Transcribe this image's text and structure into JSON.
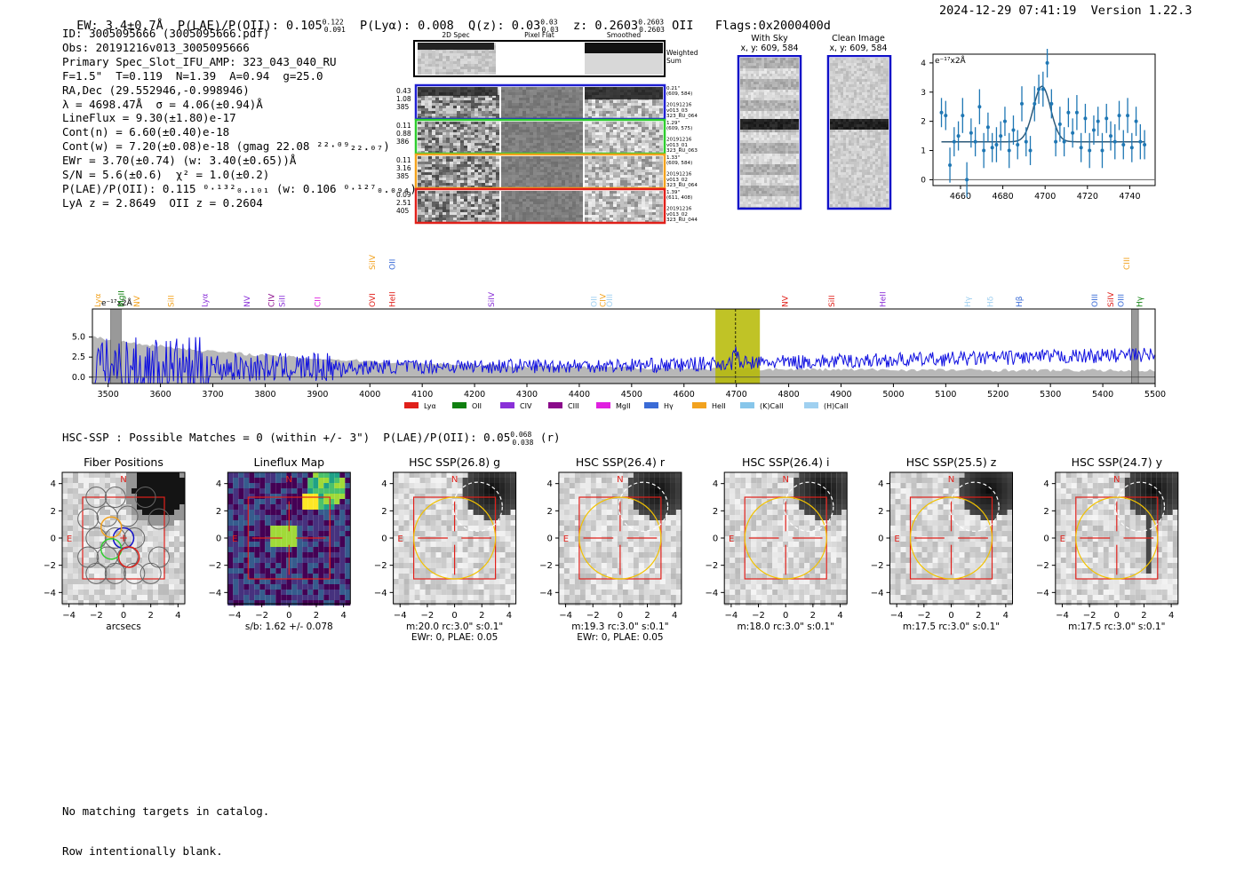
{
  "header": {
    "line": "EW: 3.4±0.7Å  P(LAE)/P(OII): 0.105 ₀.₀₉₁  P(Lyα): 0.008  Q(z): 0.03 ₀.₀₃  z: 0.2603 ₀.₂₆₀₃ OII   Flags:0x2000400d",
    "ew_sup": "0.122",
    "qz_sup": "0.03",
    "z_sup": "0.2603",
    "timestamp": "2024-12-29 07:41:19  Version 1.22.3"
  },
  "info": [
    "ID: 3005095666 (3005095666.pdf)",
    "Obs: 20191216v013_3005095666",
    "Primary Spec_Slot_IFU_AMP: 323_043_040_RU",
    "F=1.5\"  T=0.119  N=1.39  A=0.94  g=25.0",
    "RA,Dec (29.552946,-0.998946)",
    "λ = 4698.47Å  σ = 4.06(±0.94)Å",
    "LineFlux = 9.30(±1.80)e-17",
    "Cont(n) = 6.60(±0.40)e-18",
    "Cont(w) = 7.20(±0.08)e-18 (gmag 22.08 ²²·⁰⁹₂₂.₀₇)",
    "EWr = 3.70(±0.74) (w: 3.40(±0.65))Å",
    "S/N = 5.6(±0.6)  χ² = 1.0(±0.2)",
    "P(LAE)/P(OII): 0.115 ⁰·¹³²₀.₁₀₁ (w: 0.106 ⁰·¹²⁷₀.₀₉₄)",
    "LyA z = 2.8649  OII z = 0.2604"
  ],
  "cutouts": {
    "col_titles": [
      "2D Spec",
      "Pixel Flat",
      "Smoothed"
    ],
    "weighted_label": "Weighted\nSum",
    "rows": [
      {
        "left": "0.43\n1.08\n385",
        "right": "0.21\"\n(609, 584)\n\n20191216\nv013_03\n323_RU_064",
        "color": "#1f1fd0"
      },
      {
        "left": "0.11\n0.88\n386",
        "right": "1.29\"\n(609, 575)\n\n20191216\nv013_01\n323_RU_063",
        "color": "#2ecc2e"
      },
      {
        "left": "0.11\n3.16\n385",
        "right": "1.33\"\n(609, 584)\n\n20191216\nv013_02\n323_RU_064",
        "color": "#f2a21e"
      },
      {
        "left": "0.09\n2.51\n405",
        "right": "1.39\"\n(611, 408)\n\n20191216\nv013_02\n323_RU_044",
        "color": "#e0201a"
      }
    ]
  },
  "sky": {
    "with_sky_title": "With Sky\nx, y: 609, 584",
    "clean_title": "Clean Image\nx, y: 609, 584"
  },
  "zoom_chart": {
    "ylabel": "e⁻¹⁷x2Å",
    "xticks": [
      "4660",
      "4680",
      "4700",
      "4720",
      "4740"
    ],
    "yticks": [
      "0",
      "1",
      "2",
      "3",
      "4"
    ]
  },
  "chart_data": [
    {
      "type": "scatter",
      "xlim": [
        4647,
        4752
      ],
      "ylim": [
        -0.2,
        4.3
      ],
      "x": [
        4651,
        4653,
        4655,
        4657,
        4659,
        4661,
        4663,
        4665,
        4667,
        4669,
        4671,
        4673,
        4675,
        4677,
        4679,
        4681,
        4683,
        4685,
        4687,
        4689,
        4691,
        4693,
        4695,
        4697,
        4699,
        4701,
        4703,
        4705,
        4707,
        4709,
        4711,
        4713,
        4715,
        4717,
        4719,
        4721,
        4723,
        4725,
        4727,
        4729,
        4731,
        4733,
        4735,
        4737,
        4739,
        4741,
        4743,
        4745,
        4747
      ],
      "values": [
        2.3,
        2.2,
        0.5,
        1.3,
        1.5,
        2.2,
        0.0,
        1.6,
        1.3,
        2.5,
        1.0,
        1.8,
        1.1,
        1.2,
        1.5,
        2.0,
        1.0,
        1.7,
        1.2,
        2.6,
        1.3,
        1.0,
        2.6,
        3.1,
        3.1,
        4.0,
        2.6,
        1.3,
        1.9,
        1.3,
        2.3,
        1.6,
        2.3,
        1.1,
        2.1,
        1.0,
        1.7,
        2.0,
        1.0,
        2.1,
        1.5,
        1.3,
        2.2,
        1.2,
        2.2,
        1.1,
        2.0,
        1.3,
        1.2
      ],
      "errors": [
        0.5,
        0.5,
        0.6,
        0.5,
        0.5,
        0.6,
        0.6,
        0.5,
        0.5,
        0.6,
        0.6,
        0.5,
        0.5,
        0.6,
        0.5,
        0.5,
        0.6,
        0.5,
        0.5,
        0.6,
        0.5,
        0.5,
        0.6,
        0.5,
        0.6,
        0.5,
        0.5,
        0.5,
        0.6,
        0.5,
        0.5,
        0.5,
        0.6,
        0.5,
        0.5,
        0.6,
        0.5,
        0.5,
        0.6,
        0.5,
        0.5,
        0.6,
        0.5,
        0.5,
        0.6,
        0.5,
        0.5,
        0.6,
        0.5
      ],
      "fit": {
        "continuum": 1.3,
        "peak": 3.2,
        "center": 4698.5,
        "sigma": 4.06
      }
    },
    {
      "type": "line",
      "xlim": [
        3470,
        5500
      ],
      "ylim": [
        -0.8,
        8.5
      ],
      "xticks": [
        "3500",
        "3600",
        "3700",
        "3800",
        "3900",
        "4000",
        "4100",
        "4200",
        "4300",
        "4400",
        "4500",
        "4600",
        "4700",
        "4800",
        "4900",
        "5000",
        "5100",
        "5200",
        "5300",
        "5400",
        "5500"
      ],
      "yticks": [
        "0.0",
        "2.5",
        "5.0"
      ],
      "ylabel": "e⁻¹⁷x2Å",
      "highlight": [
        4660,
        4745
      ],
      "line_marker": 4698.5
    }
  ],
  "lines_top": [
    {
      "name": "SiIV",
      "x": 4005,
      "color": "#f2a21e",
      "row": 0
    },
    {
      "name": "OII",
      "x": 4043,
      "color": "#3a6bd6",
      "row": 0
    },
    {
      "name": "CIII",
      "x": 5446,
      "color": "#f2a21e",
      "row": 0
    }
  ],
  "lines": [
    {
      "name": "Lyα",
      "x": 3480,
      "color": "#f2a21e"
    },
    {
      "name": "MgII",
      "x": 3525,
      "color": "#108010"
    },
    {
      "name": "NV",
      "x": 3555,
      "color": "#f2a21e"
    },
    {
      "name": "SiII",
      "x": 3620,
      "color": "#f2a21e"
    },
    {
      "name": "Lyα",
      "x": 3685,
      "color": "#8a30d8"
    },
    {
      "name": "NV",
      "x": 3765,
      "color": "#8a30d8"
    },
    {
      "name": "CIV",
      "x": 3812,
      "color": "#8a0a8a"
    },
    {
      "name": "SiII",
      "x": 3832,
      "color": "#8a30d8"
    },
    {
      "name": "CII",
      "x": 3900,
      "color": "#e020e0"
    },
    {
      "name": "OVI",
      "x": 4005,
      "color": "#e0201a"
    },
    {
      "name": "HeII",
      "x": 4043,
      "color": "#e0201a"
    },
    {
      "name": "SiIV",
      "x": 4232,
      "color": "#8a30d8"
    },
    {
      "name": "OII",
      "x": 4428,
      "color": "#9fd0f0"
    },
    {
      "name": "CIV",
      "x": 4445,
      "color": "#f2a21e"
    },
    {
      "name": "OIII",
      "x": 4458,
      "color": "#9fd0f0"
    },
    {
      "name": "NV",
      "x": 4793,
      "color": "#e0201a"
    },
    {
      "name": "SiII",
      "x": 4882,
      "color": "#e0201a"
    },
    {
      "name": "HeII",
      "x": 4980,
      "color": "#8a30d8"
    },
    {
      "name": "Hγ",
      "x": 5142,
      "color": "#9fd0f0"
    },
    {
      "name": "Hδ",
      "x": 5185,
      "color": "#9fd0f0"
    },
    {
      "name": "Hβ",
      "x": 5240,
      "color": "#3a6bd6"
    },
    {
      "name": "OIII",
      "x": 5385,
      "color": "#3a6bd6"
    },
    {
      "name": "SiIV",
      "x": 5415,
      "color": "#e0201a"
    },
    {
      "name": "OIII",
      "x": 5435,
      "color": "#3a6bd6"
    },
    {
      "name": "Hγ",
      "x": 5470,
      "color": "#108010"
    }
  ],
  "legend": [
    {
      "name": "Lyα",
      "color": "#e0201a"
    },
    {
      "name": "OII",
      "color": "#108010"
    },
    {
      "name": "CIV",
      "color": "#8a30d8"
    },
    {
      "name": "CIII",
      "color": "#8a0a8a"
    },
    {
      "name": "MgII",
      "color": "#e020e0"
    },
    {
      "name": "Hγ",
      "color": "#3a6bd6"
    },
    {
      "name": "HeII",
      "color": "#f2a21e"
    },
    {
      "name": "(K)CaII",
      "color": "#87c6ea"
    },
    {
      "name": "(H)CaII",
      "color": "#9fd0f0"
    }
  ],
  "hsc": {
    "summary": "HSC-SSP : Possible Matches = 0 (within +/- 3\")  P(LAE)/P(OII): 0.05 ⁰·⁰⁶⁸₀.₀₃₈ (r)",
    "panels": [
      {
        "title": "Fiber Positions",
        "caption": "arcsecs"
      },
      {
        "title": "Lineflux Map",
        "caption": "s/b: 1.62 +/- 0.078"
      },
      {
        "title": "HSC SSP(26.8) g",
        "caption": "m:20.0 rc:3.0\"  s:0.1\"\nEWr: 0, PLAE: 0.05"
      },
      {
        "title": "HSC SSP(26.4) r",
        "caption": "m:19.3 rc:3.0\"  s:0.1\"\nEWr: 0, PLAE: 0.05"
      },
      {
        "title": "HSC SSP(26.4) i",
        "caption": "m:18.0 rc:3.0\"  s:0.1\""
      },
      {
        "title": "HSC SSP(25.5) z",
        "caption": "m:17.5 rc:3.0\"  s:0.1\""
      },
      {
        "title": "HSC SSP(24.7) y",
        "caption": "m:17.5 rc:3.0\"  s:0.1\""
      }
    ],
    "xticks": [
      "−4",
      "−2",
      "0",
      "2",
      "4"
    ],
    "yticks": [
      "4",
      "2",
      "0",
      "−2",
      "−4"
    ],
    "n_label": "N",
    "e_label": "E"
  },
  "footer": [
    "No matching targets in catalog.",
    "Row intentionally blank."
  ]
}
